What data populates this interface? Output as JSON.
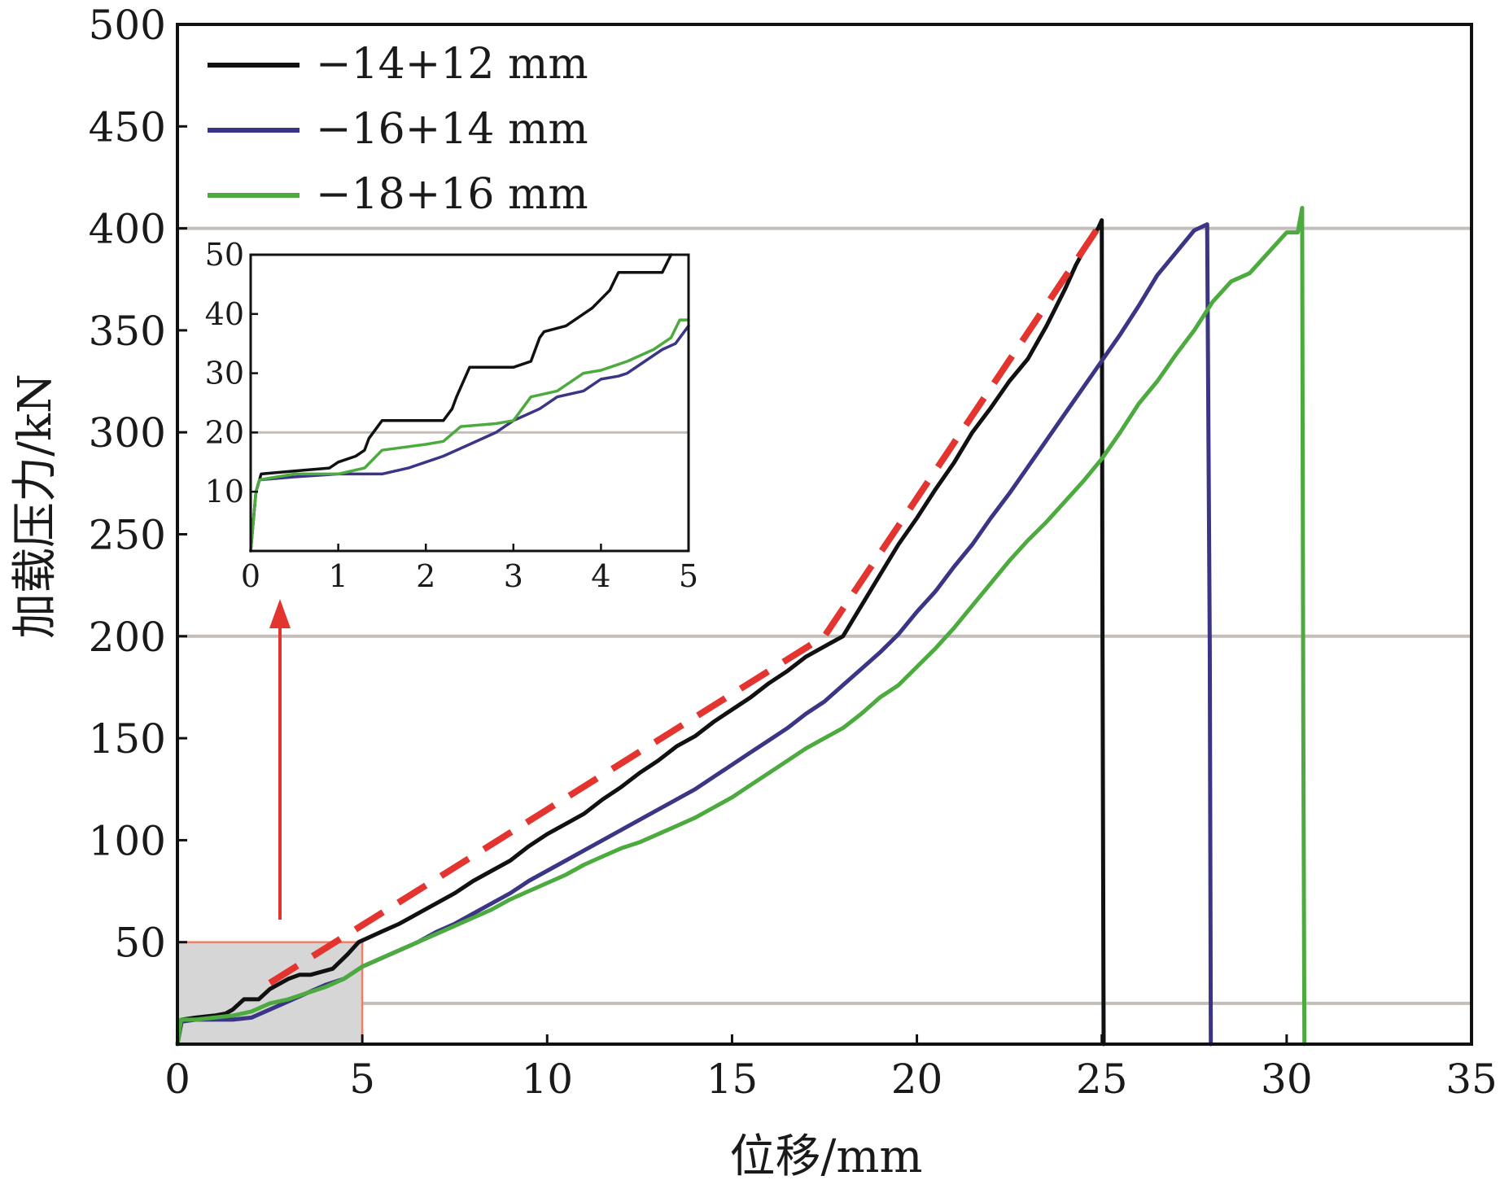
{
  "chart_data": {
    "type": "line",
    "xlabel": "位移/mm",
    "ylabel": "加载压力/kN",
    "xlim": [
      0,
      35
    ],
    "ylim": [
      0,
      500
    ],
    "xticks": [
      0,
      5,
      10,
      15,
      20,
      25,
      30,
      35
    ],
    "yticks": [
      50,
      100,
      150,
      200,
      250,
      300,
      350,
      400,
      450,
      500
    ],
    "reference_lines_y": [
      20,
      200,
      400
    ],
    "colors": {
      "s1": "#111111",
      "s2": "#3a3585",
      "s3": "#4caa3e",
      "trend": "#e3342f",
      "grid": "#c3beb9",
      "zoom_fill": "#d6d6d6",
      "zoom_border": "#e8826a"
    },
    "legend": {
      "placement": "top-left",
      "entries": [
        "−14+12 mm",
        "−16+14 mm",
        "−18+16 mm"
      ]
    },
    "series": [
      {
        "name": "−14+12 mm",
        "color_key": "s1",
        "x": [
          0,
          0.12,
          0.5,
          1,
          1.3,
          1.5,
          1.8,
          2.2,
          2.5,
          3,
          3.3,
          3.6,
          4.2,
          4.6,
          4.9,
          5.5,
          6,
          6.5,
          7,
          7.5,
          8,
          8.5,
          9,
          9.5,
          10,
          10.5,
          11,
          11.5,
          12,
          12.5,
          13,
          13.5,
          14,
          14.5,
          15,
          15.5,
          16,
          16.5,
          17,
          17.5,
          18,
          18.5,
          19,
          19.5,
          20,
          20.5,
          21,
          21.5,
          22,
          22.5,
          23,
          23.5,
          24,
          24.3,
          24.6,
          24.9,
          25.0,
          25.02,
          25.05
        ],
        "y": [
          0,
          12,
          13,
          14,
          15,
          17,
          22,
          22,
          27,
          32,
          34,
          34,
          37,
          44,
          50,
          55,
          59,
          64,
          69,
          74,
          80,
          85,
          90,
          97,
          103,
          108,
          113,
          120,
          126,
          133,
          139,
          146,
          151,
          158,
          164,
          170,
          177,
          183,
          190,
          195,
          200,
          215,
          230,
          245,
          258,
          272,
          285,
          300,
          312,
          325,
          336,
          352,
          370,
          382,
          392,
          400,
          404,
          200,
          0
        ]
      },
      {
        "name": "−16+14 mm",
        "color_key": "s2",
        "x": [
          0,
          0.1,
          0.5,
          1,
          1.5,
          2,
          2.5,
          3,
          3.5,
          4,
          4.5,
          5,
          5.5,
          6,
          6.5,
          7,
          7.5,
          8,
          8.5,
          9,
          9.5,
          10,
          10.5,
          11,
          11.5,
          12,
          12.5,
          13,
          13.5,
          14,
          14.5,
          15,
          15.5,
          16,
          16.5,
          17,
          17.5,
          18,
          18.5,
          19,
          19.5,
          20,
          20.5,
          21,
          21.5,
          22,
          22.5,
          23,
          23.5,
          24,
          24.5,
          25,
          25.5,
          26,
          26.5,
          27,
          27.5,
          27.85,
          27.92,
          27.95
        ],
        "y": [
          0,
          11,
          12,
          12,
          12,
          13,
          17,
          21,
          25,
          29,
          32,
          38,
          42,
          46,
          50,
          55,
          59,
          64,
          69,
          74,
          80,
          85,
          90,
          95,
          100,
          105,
          110,
          115,
          120,
          125,
          131,
          137,
          143,
          149,
          155,
          162,
          168,
          176,
          184,
          192,
          201,
          212,
          222,
          234,
          245,
          258,
          270,
          283,
          296,
          309,
          322,
          335,
          348,
          362,
          377,
          388,
          399,
          402,
          195,
          0
        ]
      },
      {
        "name": "−18+16 mm",
        "color_key": "s3",
        "x": [
          0,
          0.1,
          0.5,
          1,
          1.5,
          2,
          2.5,
          3,
          3.5,
          4,
          4.5,
          5,
          5.5,
          6,
          6.5,
          7,
          7.5,
          8,
          8.5,
          9,
          9.5,
          10,
          10.5,
          11,
          11.5,
          12,
          12.5,
          13,
          13.5,
          14,
          14.5,
          15,
          15.5,
          16,
          16.5,
          17,
          17.5,
          18,
          18.5,
          19,
          19.5,
          20,
          20.5,
          21,
          21.5,
          22,
          22.5,
          23,
          23.5,
          24,
          24.5,
          25,
          25.5,
          26,
          26.5,
          27,
          27.5,
          28,
          28.5,
          29,
          29.5,
          30,
          30.3,
          30.42,
          30.45,
          30.48
        ],
        "y": [
          0,
          12,
          12,
          13,
          14,
          16,
          20,
          22,
          25,
          28,
          32,
          38,
          42,
          46,
          50,
          54,
          58,
          62,
          66,
          71,
          75,
          79,
          83,
          88,
          92,
          96,
          99,
          103,
          107,
          111,
          116,
          121,
          127,
          133,
          139,
          145,
          150,
          155,
          162,
          170,
          176,
          185,
          194,
          204,
          215,
          226,
          237,
          247,
          256,
          266,
          276,
          287,
          300,
          314,
          325,
          338,
          350,
          364,
          374,
          378,
          388,
          398,
          398,
          410,
          160,
          0
        ]
      }
    ],
    "trend_line": {
      "x": [
        2.5,
        17.5,
        25
      ],
      "y": [
        30,
        200,
        403
      ],
      "style": "dashed"
    },
    "zoom_region": {
      "x": [
        0,
        5
      ],
      "y": [
        0,
        50
      ]
    },
    "inset": {
      "xlim": [
        0,
        5
      ],
      "ylim": [
        0,
        50
      ],
      "xticks": [
        0,
        1,
        2,
        3,
        4,
        5
      ],
      "yticks": [
        10,
        20,
        30,
        40,
        50
      ],
      "reference_lines_y": [
        20
      ],
      "series": [
        {
          "name": "−14+12 mm",
          "color_key": "s1",
          "x": [
            0,
            0.06,
            0.12,
            0.5,
            0.9,
            1.0,
            1.2,
            1.3,
            1.35,
            1.5,
            1.8,
            2.2,
            2.3,
            2.35,
            2.5,
            2.6,
            3.0,
            3.2,
            3.3,
            3.35,
            3.6,
            3.9,
            4.1,
            4.2,
            4.3,
            4.5,
            4.7,
            4.8
          ],
          "y": [
            0,
            10,
            13,
            13.5,
            14,
            15,
            16,
            17,
            19,
            22,
            22,
            22,
            24,
            26,
            31,
            31,
            31,
            32,
            36,
            37,
            38,
            41,
            44,
            47,
            47,
            47,
            47,
            50
          ]
        },
        {
          "name": "−16+14 mm",
          "color_key": "s2",
          "x": [
            0,
            0.06,
            0.1,
            0.5,
            1.0,
            1.5,
            1.8,
            2.0,
            2.2,
            2.5,
            2.8,
            3.0,
            3.3,
            3.5,
            3.8,
            4.0,
            4.2,
            4.3,
            4.5,
            4.7,
            4.85,
            5.0
          ],
          "y": [
            0,
            10,
            12,
            12.5,
            13,
            13,
            14,
            15,
            16,
            18,
            20,
            22,
            24,
            26,
            27,
            29,
            29.5,
            30,
            32,
            34,
            35,
            38
          ]
        },
        {
          "name": "−18+16 mm",
          "color_key": "s3",
          "x": [
            0,
            0.06,
            0.1,
            0.5,
            1.0,
            1.3,
            1.5,
            2.0,
            2.2,
            2.4,
            2.8,
            3.0,
            3.2,
            3.5,
            3.8,
            4.0,
            4.3,
            4.6,
            4.8,
            4.9,
            5.0
          ],
          "y": [
            0,
            10,
            12,
            13,
            13,
            14,
            17,
            18,
            18.5,
            21,
            21.5,
            22,
            26,
            27,
            30,
            30.5,
            32,
            34,
            36,
            39,
            39
          ]
        }
      ]
    }
  }
}
